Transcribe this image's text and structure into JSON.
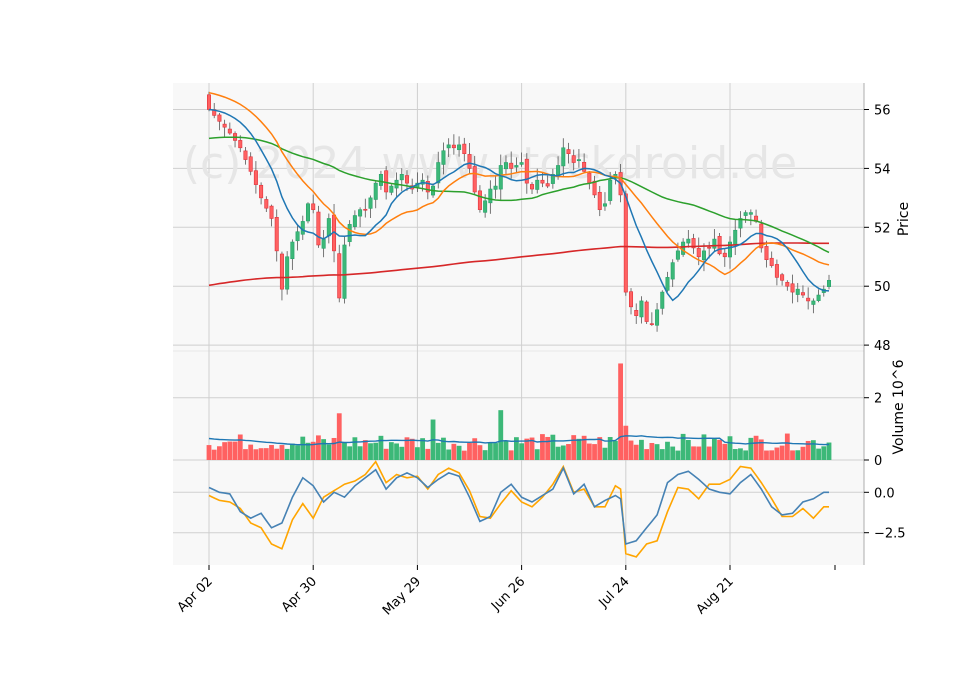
{
  "chart_data": {
    "type": "candlestick",
    "watermark": "(c) 2024 www.stockdroid.de",
    "colors": {
      "up": "#26a269",
      "up_fill": "#3cb878",
      "down": "#e0313b",
      "down_fill": "#ff6161",
      "ma_fast": "#1f77b4",
      "ma_mid": "#ff7f0e",
      "ma_slow": "#2ca02c",
      "ma_long": "#d62728",
      "vol_avg": "#1f77b4",
      "osc_a": "#4682b4",
      "osc_b": "#ffa500"
    },
    "x_tick_labels": [
      "Apr 02",
      "Apr 30",
      "May 29",
      "Jun 26",
      "Jul 24",
      "Aug 21"
    ],
    "x_tick_index": [
      0,
      20,
      40,
      60,
      80,
      100
    ],
    "n_points": 120,
    "price": {
      "ylabel": "Price",
      "ylim": [
        47.8,
        56.9
      ],
      "yticks": [
        48,
        50,
        52,
        54,
        56
      ],
      "anchors_close": [
        [
          0,
          56.0
        ],
        [
          2,
          55.6
        ],
        [
          4,
          55.2
        ],
        [
          6,
          54.7
        ],
        [
          8,
          53.9
        ],
        [
          10,
          53.0
        ],
        [
          12,
          52.3
        ],
        [
          13,
          51.2
        ],
        [
          14,
          49.9
        ],
        [
          15,
          51.0
        ],
        [
          16,
          51.5
        ],
        [
          18,
          52.2
        ],
        [
          19,
          52.8
        ],
        [
          20,
          52.6
        ],
        [
          21,
          51.4
        ],
        [
          22,
          51.6
        ],
        [
          23,
          52.3
        ],
        [
          24,
          51.2
        ],
        [
          25,
          49.6
        ],
        [
          26,
          51.4
        ],
        [
          27,
          52.1
        ],
        [
          28,
          52.4
        ],
        [
          29,
          52.6
        ],
        [
          30,
          52.6
        ],
        [
          31,
          53.0
        ],
        [
          32,
          53.5
        ],
        [
          33,
          53.8
        ],
        [
          34,
          53.2
        ],
        [
          35,
          53.4
        ],
        [
          36,
          53.6
        ],
        [
          37,
          53.8
        ],
        [
          38,
          53.5
        ],
        [
          39,
          53.3
        ],
        [
          40,
          53.5
        ],
        [
          41,
          53.6
        ],
        [
          42,
          53.2
        ],
        [
          43,
          53.4
        ],
        [
          44,
          54.2
        ],
        [
          45,
          54.6
        ],
        [
          46,
          54.8
        ],
        [
          47,
          54.7
        ],
        [
          48,
          54.8
        ],
        [
          49,
          54.5
        ],
        [
          50,
          54.0
        ],
        [
          51,
          53.2
        ],
        [
          52,
          52.6
        ],
        [
          53,
          52.9
        ],
        [
          54,
          53.3
        ],
        [
          55,
          53.4
        ],
        [
          56,
          54.1
        ],
        [
          57,
          54.2
        ],
        [
          58,
          54.0
        ],
        [
          59,
          54.1
        ],
        [
          60,
          54.2
        ],
        [
          61,
          53.5
        ],
        [
          62,
          53.3
        ],
        [
          63,
          53.6
        ],
        [
          64,
          53.5
        ],
        [
          65,
          53.4
        ],
        [
          66,
          53.8
        ],
        [
          67,
          54.1
        ],
        [
          68,
          54.7
        ],
        [
          69,
          54.5
        ],
        [
          70,
          54.2
        ],
        [
          71,
          54.3
        ],
        [
          72,
          53.9
        ],
        [
          73,
          53.5
        ],
        [
          74,
          53.1
        ],
        [
          75,
          52.6
        ],
        [
          76,
          52.8
        ],
        [
          77,
          53.6
        ],
        [
          78,
          53.8
        ],
        [
          79,
          53.1
        ],
        [
          80,
          49.8
        ],
        [
          81,
          49.3
        ],
        [
          82,
          49.0
        ],
        [
          83,
          49.5
        ],
        [
          84,
          48.8
        ],
        [
          85,
          48.7
        ],
        [
          86,
          49.2
        ],
        [
          87,
          49.8
        ],
        [
          88,
          50.3
        ],
        [
          89,
          50.8
        ],
        [
          90,
          51.2
        ],
        [
          91,
          51.5
        ],
        [
          92,
          51.6
        ],
        [
          93,
          51.3
        ],
        [
          94,
          51.0
        ],
        [
          95,
          51.2
        ],
        [
          96,
          51.3
        ],
        [
          97,
          51.6
        ],
        [
          98,
          51.1
        ],
        [
          99,
          51.0
        ],
        [
          100,
          51.5
        ],
        [
          101,
          51.9
        ],
        [
          102,
          52.3
        ],
        [
          103,
          52.5
        ],
        [
          104,
          52.5
        ],
        [
          105,
          52.2
        ],
        [
          106,
          51.3
        ],
        [
          107,
          50.9
        ],
        [
          108,
          50.7
        ],
        [
          109,
          50.3
        ],
        [
          110,
          50.2
        ],
        [
          111,
          50.0
        ],
        [
          112,
          49.8
        ],
        [
          113,
          49.9
        ],
        [
          114,
          49.7
        ],
        [
          115,
          49.5
        ],
        [
          116,
          49.5
        ],
        [
          117,
          49.7
        ],
        [
          118,
          49.9
        ],
        [
          119,
          50.2
        ]
      ]
    },
    "volume": {
      "ylabel": "Volume  10^6",
      "ylim": [
        0,
        3.5
      ],
      "yticks": [
        0,
        2
      ],
      "spikes": [
        [
          25,
          1.5
        ],
        [
          43,
          1.3
        ],
        [
          56,
          1.6
        ],
        [
          79,
          3.1
        ],
        [
          80,
          1.1
        ]
      ]
    },
    "oscillator": {
      "ylim": [
        -4.5,
        2.0
      ],
      "yticks": [
        0.0,
        -2.5
      ],
      "series_a": {
        "anchors": [
          [
            0,
            0.3
          ],
          [
            2,
            0.0
          ],
          [
            4,
            -0.1
          ],
          [
            6,
            -1.2
          ],
          [
            8,
            -1.6
          ],
          [
            10,
            -1.3
          ],
          [
            12,
            -2.2
          ],
          [
            14,
            -1.9
          ],
          [
            16,
            -0.3
          ],
          [
            18,
            0.9
          ],
          [
            20,
            0.4
          ],
          [
            22,
            -0.6
          ],
          [
            24,
            0.0
          ],
          [
            26,
            -0.3
          ],
          [
            28,
            0.4
          ],
          [
            30,
            0.9
          ],
          [
            32,
            1.4
          ],
          [
            34,
            0.2
          ],
          [
            36,
            0.9
          ],
          [
            38,
            1.2
          ],
          [
            40,
            0.9
          ],
          [
            42,
            0.3
          ],
          [
            44,
            0.8
          ],
          [
            46,
            1.2
          ],
          [
            48,
            1.0
          ],
          [
            50,
            -0.3
          ],
          [
            52,
            -1.8
          ],
          [
            54,
            -1.5
          ],
          [
            56,
            0.0
          ],
          [
            58,
            0.5
          ],
          [
            60,
            -0.3
          ],
          [
            62,
            -0.6
          ],
          [
            64,
            -0.2
          ],
          [
            66,
            0.2
          ],
          [
            68,
            1.5
          ],
          [
            70,
            -0.1
          ],
          [
            72,
            0.5
          ],
          [
            74,
            -0.9
          ],
          [
            76,
            -0.5
          ],
          [
            78,
            -0.2
          ],
          [
            79,
            -0.4
          ],
          [
            80,
            -3.2
          ],
          [
            82,
            -3.0
          ],
          [
            84,
            -2.2
          ],
          [
            86,
            -1.4
          ],
          [
            88,
            0.6
          ],
          [
            90,
            1.1
          ],
          [
            92,
            1.3
          ],
          [
            94,
            0.8
          ],
          [
            96,
            0.2
          ],
          [
            98,
            0.0
          ],
          [
            100,
            -0.1
          ],
          [
            102,
            0.6
          ],
          [
            104,
            1.1
          ],
          [
            106,
            0.2
          ],
          [
            108,
            -0.9
          ],
          [
            110,
            -1.4
          ],
          [
            112,
            -1.3
          ],
          [
            114,
            -0.6
          ],
          [
            116,
            -0.4
          ],
          [
            118,
            0.0
          ]
        ]
      },
      "series_b": {
        "anchors": [
          [
            0,
            -0.2
          ],
          [
            2,
            -0.5
          ],
          [
            4,
            -0.6
          ],
          [
            6,
            -1.0
          ],
          [
            8,
            -1.9
          ],
          [
            10,
            -2.2
          ],
          [
            12,
            -3.2
          ],
          [
            14,
            -3.5
          ],
          [
            16,
            -1.7
          ],
          [
            18,
            -0.7
          ],
          [
            20,
            -1.6
          ],
          [
            22,
            -0.3
          ],
          [
            24,
            0.1
          ],
          [
            26,
            0.5
          ],
          [
            28,
            0.7
          ],
          [
            30,
            1.1
          ],
          [
            32,
            1.9
          ],
          [
            34,
            0.6
          ],
          [
            36,
            1.1
          ],
          [
            38,
            0.9
          ],
          [
            40,
            1.0
          ],
          [
            42,
            0.2
          ],
          [
            44,
            1.1
          ],
          [
            46,
            1.5
          ],
          [
            48,
            1.2
          ],
          [
            50,
            0.1
          ],
          [
            52,
            -1.5
          ],
          [
            54,
            -1.6
          ],
          [
            56,
            -0.7
          ],
          [
            58,
            0.1
          ],
          [
            60,
            -0.6
          ],
          [
            62,
            -0.9
          ],
          [
            64,
            -0.3
          ],
          [
            66,
            0.5
          ],
          [
            68,
            1.6
          ],
          [
            70,
            0.0
          ],
          [
            72,
            0.2
          ],
          [
            74,
            -0.9
          ],
          [
            76,
            -0.9
          ],
          [
            78,
            0.4
          ],
          [
            79,
            0.2
          ],
          [
            80,
            -3.8
          ],
          [
            82,
            -4.0
          ],
          [
            84,
            -3.2
          ],
          [
            86,
            -3.0
          ],
          [
            88,
            -1.2
          ],
          [
            90,
            0.3
          ],
          [
            92,
            0.2
          ],
          [
            94,
            -0.4
          ],
          [
            96,
            0.5
          ],
          [
            98,
            0.5
          ],
          [
            100,
            0.8
          ],
          [
            102,
            1.6
          ],
          [
            104,
            1.5
          ],
          [
            106,
            0.6
          ],
          [
            108,
            -0.4
          ],
          [
            110,
            -1.5
          ],
          [
            112,
            -1.5
          ],
          [
            114,
            -1.0
          ],
          [
            116,
            -1.6
          ],
          [
            118,
            -0.9
          ]
        ]
      }
    }
  }
}
